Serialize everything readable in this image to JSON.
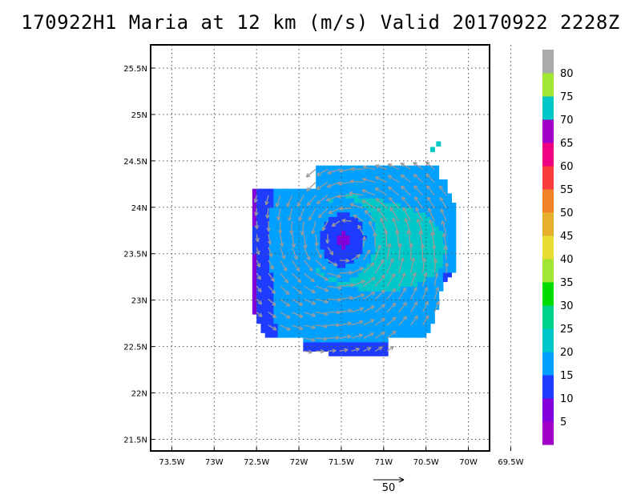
{
  "title": "170922H1 Maria at 12 km (m/s) Valid 20170922 2228Z",
  "chart_data": {
    "type": "heatmap",
    "title": "170922H1 Maria at 12 km (m/s) Valid 20170922 2228Z",
    "xlabel": "",
    "ylabel": "",
    "xlim": [
      -73.75,
      -69.75
    ],
    "ylim": [
      21.375,
      25.75
    ],
    "x_ticks": [
      {
        "value": -73.5,
        "label": "73.5W"
      },
      {
        "value": -73.0,
        "label": "73W"
      },
      {
        "value": -72.5,
        "label": "72.5W"
      },
      {
        "value": -72.0,
        "label": "72W"
      },
      {
        "value": -71.5,
        "label": "71.5W"
      },
      {
        "value": -71.0,
        "label": "71W"
      },
      {
        "value": -70.5,
        "label": "70.5W"
      },
      {
        "value": -70.0,
        "label": "70W"
      },
      {
        "value": -69.5,
        "label": "69.5W"
      }
    ],
    "y_ticks": [
      {
        "value": 21.5,
        "label": "21.5N"
      },
      {
        "value": 22.0,
        "label": "22N"
      },
      {
        "value": 22.5,
        "label": "22.5N"
      },
      {
        "value": 23.0,
        "label": "23N"
      },
      {
        "value": 23.5,
        "label": "23.5N"
      },
      {
        "value": 24.0,
        "label": "24N"
      },
      {
        "value": 24.5,
        "label": "24.5N"
      },
      {
        "value": 25.0,
        "label": "25N"
      },
      {
        "value": 25.5,
        "label": "25.5N"
      }
    ],
    "grid": true,
    "storm_center": {
      "lon": -71.45,
      "lat": 23.65
    },
    "wind_field": {
      "units": "m/s",
      "center_speed": 8,
      "eyewall_radius_deg": 0.45,
      "max_speed": 26,
      "max_location": {
        "lon": -70.65,
        "lat": 23.55
      },
      "rotation": "counterclockwise"
    },
    "vector_reference": {
      "label": "50",
      "value": 50
    },
    "colorbar": {
      "levels": [
        {
          "max": 5,
          "color": "#a000c8"
        },
        {
          "max": 10,
          "color": "#8200dc"
        },
        {
          "max": 15,
          "color": "#1e3cff"
        },
        {
          "max": 20,
          "color": "#00a0ff"
        },
        {
          "max": 25,
          "color": "#00c8c8"
        },
        {
          "max": 30,
          "color": "#00d28c"
        },
        {
          "max": 35,
          "color": "#00dc00"
        },
        {
          "max": 40,
          "color": "#a0e632"
        },
        {
          "max": 45,
          "color": "#e6dc32"
        },
        {
          "max": 50,
          "color": "#e6af2d"
        },
        {
          "max": 55,
          "color": "#f08228"
        },
        {
          "max": 60,
          "color": "#fa3c3c"
        },
        {
          "max": 65,
          "color": "#f00082"
        },
        {
          "max": 70,
          "color": "#a000c8"
        },
        {
          "max": 75,
          "color": "#00c8c8"
        },
        {
          "max": 80,
          "color": "#a0e632"
        },
        {
          "max": 85,
          "color": "#aaaaaa"
        }
      ],
      "tick_labels": [
        "5",
        "10",
        "15",
        "20",
        "25",
        "30",
        "35",
        "40",
        "45",
        "50",
        "55",
        "60",
        "65",
        "70",
        "75",
        "80"
      ]
    }
  }
}
